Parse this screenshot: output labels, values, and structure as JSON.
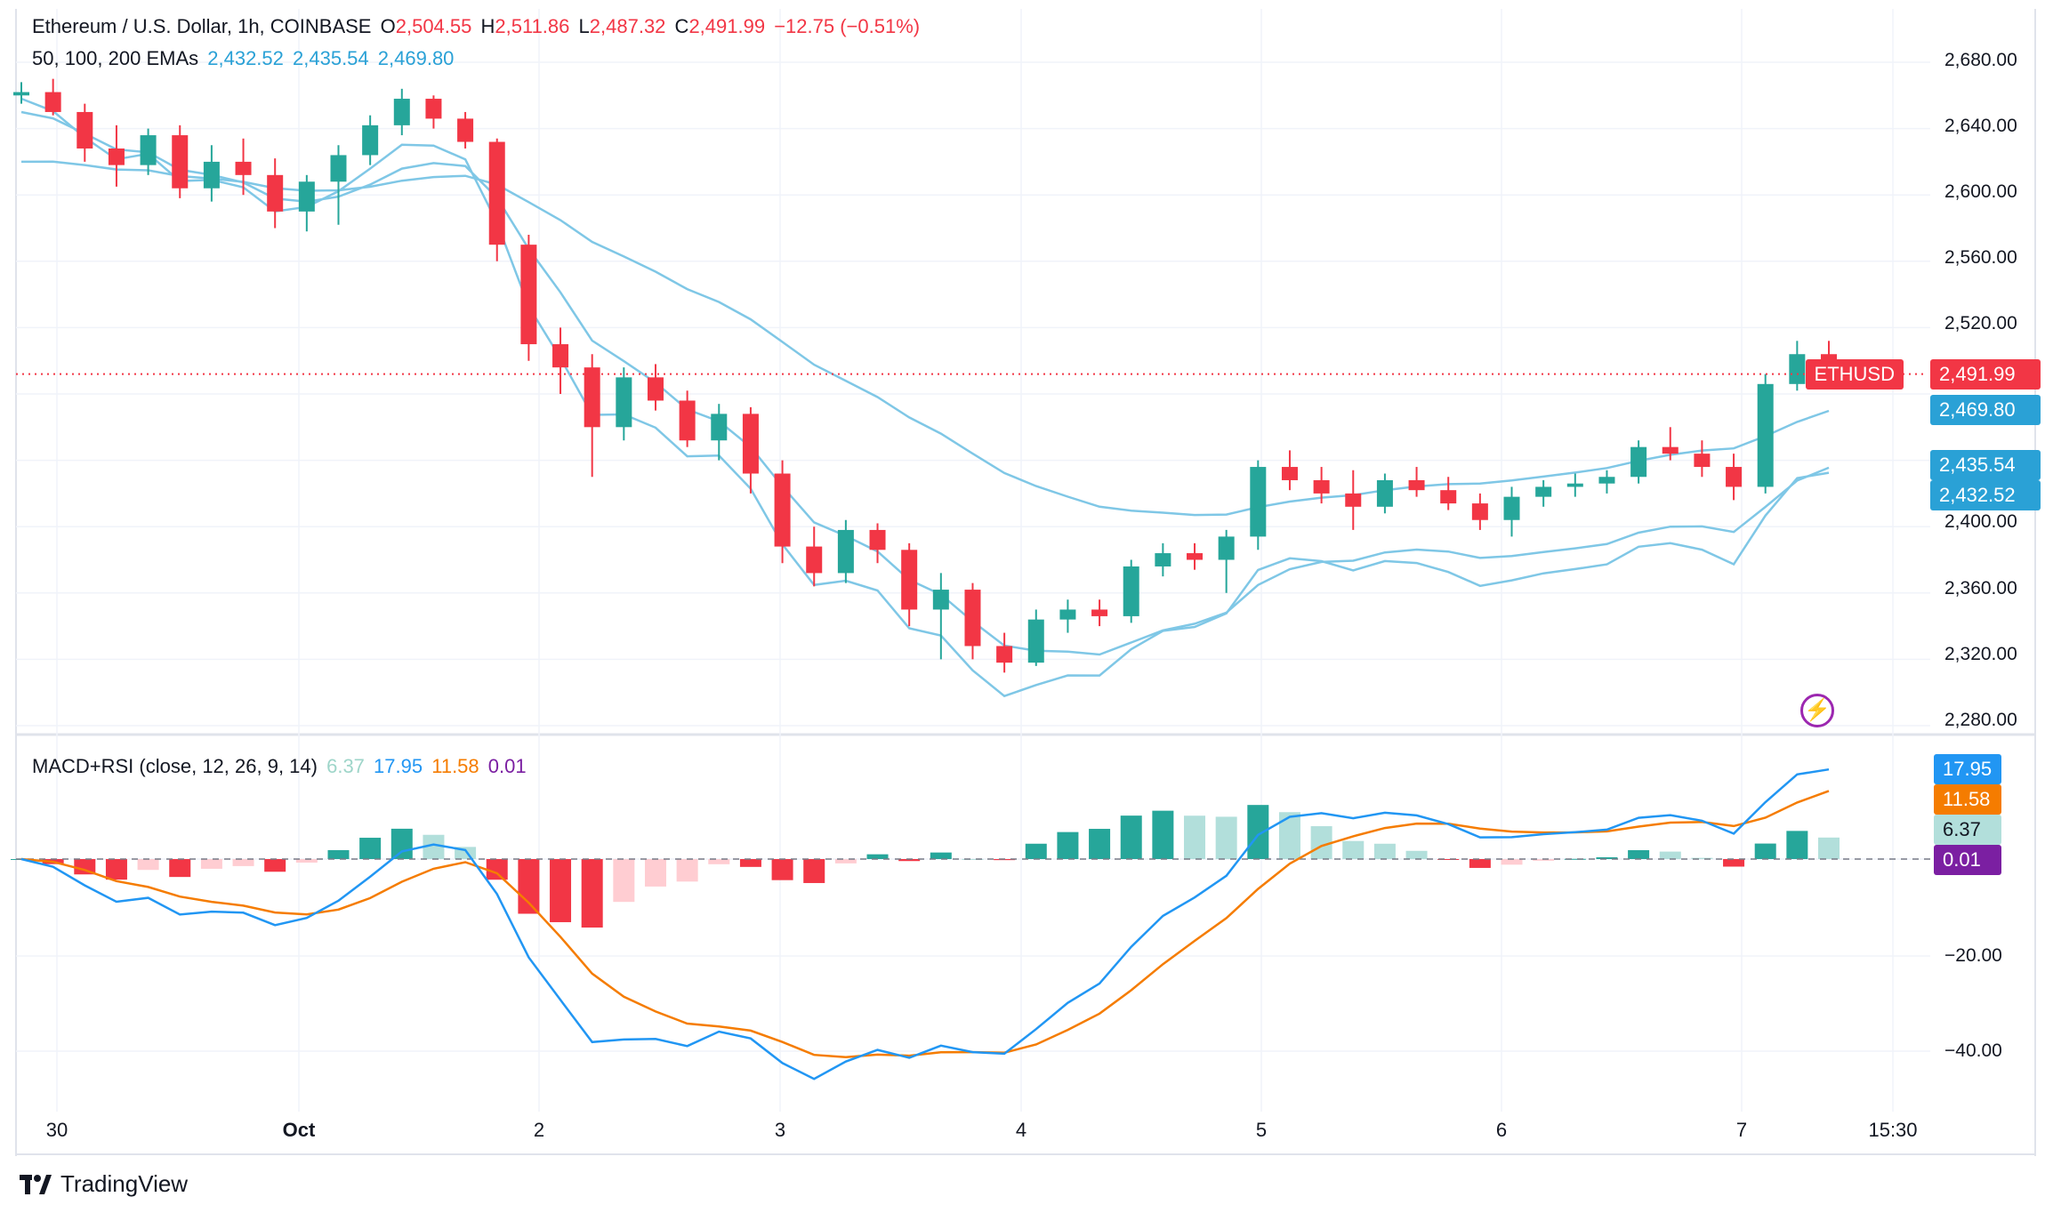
{
  "header": {
    "symbol": "Ethereum / U.S. Dollar, 1h, COINBASE",
    "o_label": "O",
    "o_value": "2,504.55",
    "h_label": "H",
    "h_value": "2,511.86",
    "l_label": "L",
    "l_value": "2,487.32",
    "c_label": "C",
    "c_value": "2,491.99",
    "change": "−12.75 (−0.51%)",
    "ema_label": "50, 100, 200 EMAs",
    "ema50": "2,432.52",
    "ema100": "2,435.54",
    "ema200": "2,469.80"
  },
  "indicator": {
    "label": "MACD+RSI (close, 12, 26, 9, 14)",
    "v1": "6.37",
    "v2": "17.95",
    "v3": "11.58",
    "v4": "0.01"
  },
  "badges": {
    "symbol_tag": "ETHUSD",
    "last_price": "2,491.99",
    "ema200": "2,469.80",
    "ema100": "2,435.54",
    "ema50": "2,432.52",
    "ind_17": "17.95",
    "ind_11": "11.58",
    "ind_6": "6.37",
    "ind_0": "0.01"
  },
  "y_ticks_price": [
    "2,680.00",
    "2,640.00",
    "2,600.00",
    "2,560.00",
    "2,520.00",
    "2,400.00",
    "2,360.00",
    "2,320.00",
    "2,280.00"
  ],
  "y_ticks_ind": [
    "−20.00",
    "−40.00"
  ],
  "x_ticks": [
    "30",
    "Oct",
    "2",
    "3",
    "4",
    "5",
    "6",
    "7",
    "15:30"
  ],
  "footer": {
    "brand": "TradingView"
  },
  "colors": {
    "up": "#26a69a",
    "down": "#f23645",
    "ema": "#7fc7e6",
    "macd": "#2196f3",
    "signal": "#f57c00",
    "hist_up_strong": "#26a69a",
    "hist_up_weak": "#b2dfdb",
    "hist_down_strong": "#f23645",
    "hist_down_weak": "#ffcdd2"
  },
  "chart_data": {
    "type": "candlestick",
    "timeframe": "1h",
    "x_labels": [
      "30",
      "Oct",
      "2",
      "3",
      "4",
      "5",
      "6",
      "7",
      "15:30"
    ],
    "ylim": [
      2280,
      2690
    ],
    "candles_ohlc_sampled": [
      [
        2660,
        2668,
        2655,
        2662
      ],
      [
        2662,
        2670,
        2648,
        2650
      ],
      [
        2650,
        2655,
        2620,
        2628
      ],
      [
        2628,
        2642,
        2605,
        2618
      ],
      [
        2618,
        2640,
        2612,
        2636
      ],
      [
        2636,
        2642,
        2598,
        2604
      ],
      [
        2604,
        2630,
        2596,
        2620
      ],
      [
        2620,
        2634,
        2600,
        2612
      ],
      [
        2612,
        2622,
        2580,
        2590
      ],
      [
        2590,
        2612,
        2578,
        2608
      ],
      [
        2608,
        2630,
        2582,
        2624
      ],
      [
        2624,
        2648,
        2618,
        2642
      ],
      [
        2642,
        2664,
        2636,
        2658
      ],
      [
        2658,
        2660,
        2640,
        2646
      ],
      [
        2646,
        2650,
        2628,
        2632
      ],
      [
        2632,
        2634,
        2560,
        2570
      ],
      [
        2570,
        2576,
        2500,
        2510
      ],
      [
        2510,
        2520,
        2480,
        2496
      ],
      [
        2496,
        2504,
        2430,
        2460
      ],
      [
        2460,
        2496,
        2452,
        2490
      ],
      [
        2490,
        2498,
        2470,
        2476
      ],
      [
        2476,
        2482,
        2448,
        2452
      ],
      [
        2452,
        2474,
        2440,
        2468
      ],
      [
        2468,
        2472,
        2420,
        2432
      ],
      [
        2432,
        2440,
        2378,
        2388
      ],
      [
        2388,
        2400,
        2364,
        2372
      ],
      [
        2372,
        2404,
        2366,
        2398
      ],
      [
        2398,
        2402,
        2378,
        2386
      ],
      [
        2386,
        2390,
        2340,
        2350
      ],
      [
        2350,
        2372,
        2320,
        2362
      ],
      [
        2362,
        2366,
        2320,
        2328
      ],
      [
        2328,
        2336,
        2312,
        2318
      ],
      [
        2318,
        2350,
        2316,
        2344
      ],
      [
        2344,
        2356,
        2336,
        2350
      ],
      [
        2350,
        2356,
        2340,
        2346
      ],
      [
        2346,
        2380,
        2342,
        2376
      ],
      [
        2376,
        2390,
        2370,
        2384
      ],
      [
        2384,
        2390,
        2374,
        2380
      ],
      [
        2380,
        2398,
        2360,
        2394
      ],
      [
        2394,
        2440,
        2386,
        2436
      ],
      [
        2436,
        2446,
        2422,
        2428
      ],
      [
        2428,
        2436,
        2414,
        2420
      ],
      [
        2420,
        2434,
        2398,
        2412
      ],
      [
        2412,
        2432,
        2408,
        2428
      ],
      [
        2428,
        2436,
        2418,
        2422
      ],
      [
        2422,
        2430,
        2410,
        2414
      ],
      [
        2414,
        2420,
        2398,
        2404
      ],
      [
        2404,
        2424,
        2394,
        2418
      ],
      [
        2418,
        2428,
        2412,
        2424
      ],
      [
        2424,
        2432,
        2418,
        2426
      ],
      [
        2426,
        2434,
        2420,
        2430
      ],
      [
        2430,
        2452,
        2426,
        2448
      ],
      [
        2448,
        2460,
        2440,
        2444
      ],
      [
        2444,
        2452,
        2430,
        2436
      ],
      [
        2436,
        2444,
        2416,
        2424
      ],
      [
        2424,
        2492,
        2420,
        2486
      ],
      [
        2486,
        2512,
        2482,
        2504
      ],
      [
        2504,
        2512,
        2487,
        2492
      ]
    ],
    "ema50_close_end": 2432.52,
    "ema100_close_end": 2435.54,
    "ema200_close_end": 2469.8,
    "last_price": 2491.99,
    "indicator": {
      "name": "MACD+RSI (close, 12, 26, 9, 14)",
      "values": [
        6.37,
        17.95,
        11.58,
        0.01
      ],
      "ylim": [
        -48,
        26
      ],
      "ticks": [
        -20,
        -40
      ]
    }
  }
}
